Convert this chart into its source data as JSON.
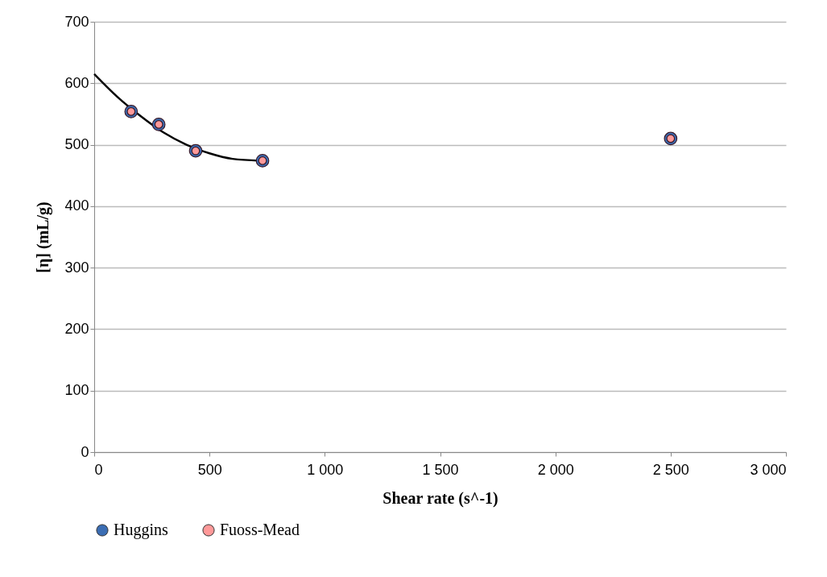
{
  "chart_data": {
    "type": "scatter",
    "xlabel": "Shear rate (s^-1)",
    "ylabel": "[η] (mL/g)",
    "x": [
      160,
      280,
      440,
      730,
      2500
    ],
    "series": [
      {
        "name": "Huggins",
        "color": "#3b6db3",
        "values": [
          554,
          533,
          490,
          474,
          510
        ]
      },
      {
        "name": "Fuoss-Mead",
        "color": "#ff9999",
        "values": [
          554,
          533,
          490,
          474,
          510
        ]
      },
      {
        "type": "line",
        "marker": "none",
        "color": "#000000",
        "x": [
          0,
          100,
          200,
          300,
          400,
          500,
          600,
          720
        ],
        "values": [
          615,
          578,
          547,
          520,
          500,
          486,
          477,
          474
        ]
      }
    ],
    "xlim": [
      0,
      3000
    ],
    "xticks": [
      0,
      500,
      {
        "value": 1000,
        "label": "1 000"
      },
      {
        "value": 1500,
        "label": "1 500"
      },
      {
        "value": 2000,
        "label": "2 000"
      },
      {
        "value": 2500,
        "label": "2 500"
      },
      {
        "value": 3000,
        "label": "3 000"
      }
    ],
    "ylim": [
      0,
      700
    ],
    "yticks": [
      0,
      100,
      200,
      300,
      400,
      500,
      600,
      700
    ],
    "grid": "y",
    "legend": "bottom",
    "marker": "circle"
  }
}
